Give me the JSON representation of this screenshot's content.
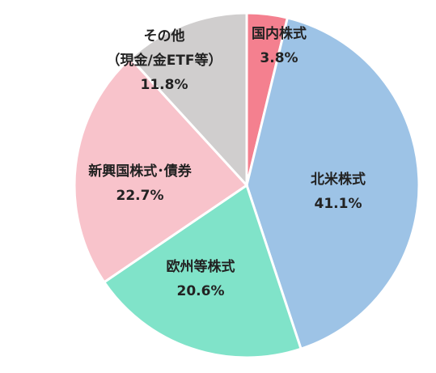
{
  "chart_data": {
    "type": "pie",
    "categories": [
      "国内株式",
      "北米株式",
      "欧州等株式",
      "新興国株式･債券",
      "その他\n（現金/金ETF等）"
    ],
    "values": [
      3.8,
      41.1,
      20.6,
      22.7,
      11.8
    ],
    "value_labels": [
      "3.8%",
      "41.1%",
      "20.6%",
      "22.7%",
      "11.8%"
    ],
    "colors": [
      "#f4808f",
      "#9dc3e6",
      "#80e3c9",
      "#f8c3cb",
      "#d0cece"
    ]
  }
}
